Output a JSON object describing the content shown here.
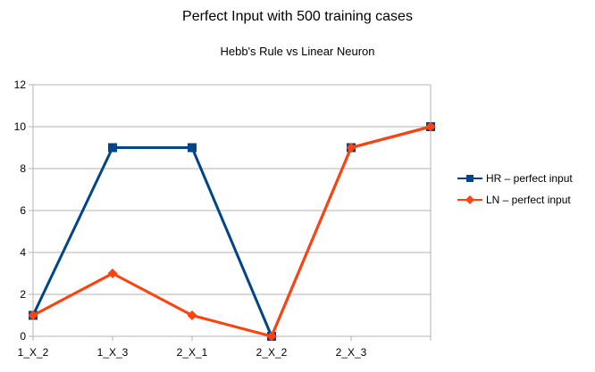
{
  "chart_data": {
    "type": "line",
    "title": "Perfect Input with 500 training cases",
    "subtitle": "Hebb's Rule vs Linear Neuron",
    "xlabel": "",
    "ylabel": "",
    "categories": [
      "1_X_2",
      "1_X_3",
      "2_X_1",
      "2_X_2",
      "2_X_3",
      ""
    ],
    "ylim": [
      0,
      12
    ],
    "yticks": [
      "0",
      "2",
      "4",
      "6",
      "8",
      "10",
      "12"
    ],
    "grid": "horizontal",
    "legend_position": "right",
    "series": [
      {
        "name": "HR – perfect input",
        "color": "#004586",
        "marker": "square",
        "values": [
          1,
          9,
          9,
          0,
          9,
          10
        ]
      },
      {
        "name": "LN – perfect input",
        "color": "#ff420e",
        "marker": "diamond",
        "values": [
          1,
          3,
          1,
          0,
          9,
          10
        ]
      }
    ]
  }
}
